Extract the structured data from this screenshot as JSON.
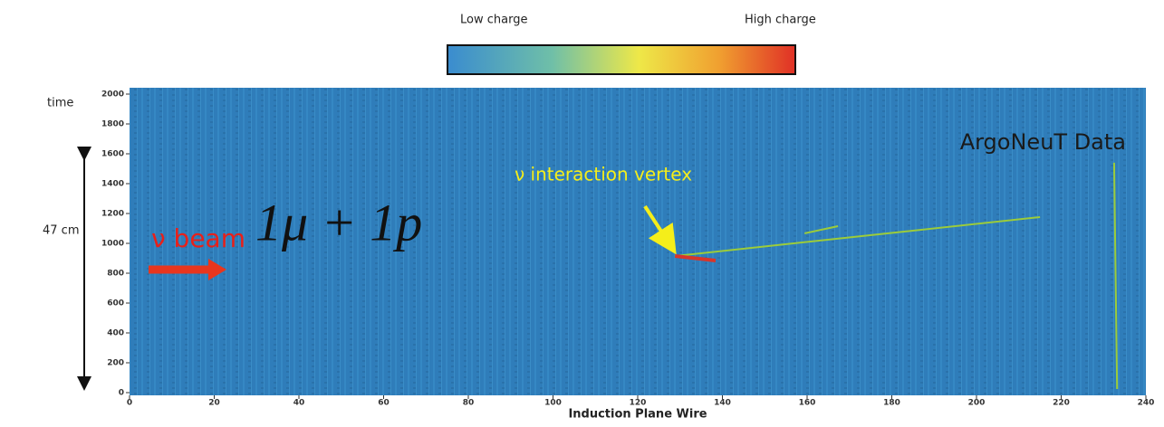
{
  "chart_data": {
    "type": "event-display",
    "colorbar": {
      "low_label": "Low charge",
      "high_label": "High charge"
    },
    "y_label": "time",
    "scale_label": "47 cm",
    "beam_label": "ν beam",
    "event_label": "1μ + 1p",
    "vertex_label": "ν interaction vertex",
    "data_label": "ArgoNeuT Data",
    "x_label": "Induction Plane Wire",
    "xlim": [
      0,
      240
    ],
    "ylim": [
      0,
      2000
    ],
    "xticks": [
      0,
      20,
      40,
      60,
      80,
      100,
      120,
      140,
      160,
      180,
      200,
      220,
      240
    ],
    "yticks": [
      0,
      200,
      400,
      600,
      800,
      1000,
      1200,
      1400,
      1600,
      1800,
      2000
    ],
    "series": [
      {
        "color": "#9ccc3a",
        "x": [
          128.8,
          215
        ],
        "values": [
          915,
          1176
        ]
      },
      {
        "color": "#d8352a",
        "x": [
          128.8,
          138.4
        ],
        "values": [
          915,
          885
        ]
      },
      {
        "color": "#9ccc3a",
        "x": [
          159.4,
          167.3
        ],
        "values": [
          1067,
          1115
        ]
      },
      {
        "color": "#9ccc3a",
        "x": [
          232.5,
          233.2
        ],
        "values": [
          1540,
          24
        ]
      }
    ]
  }
}
